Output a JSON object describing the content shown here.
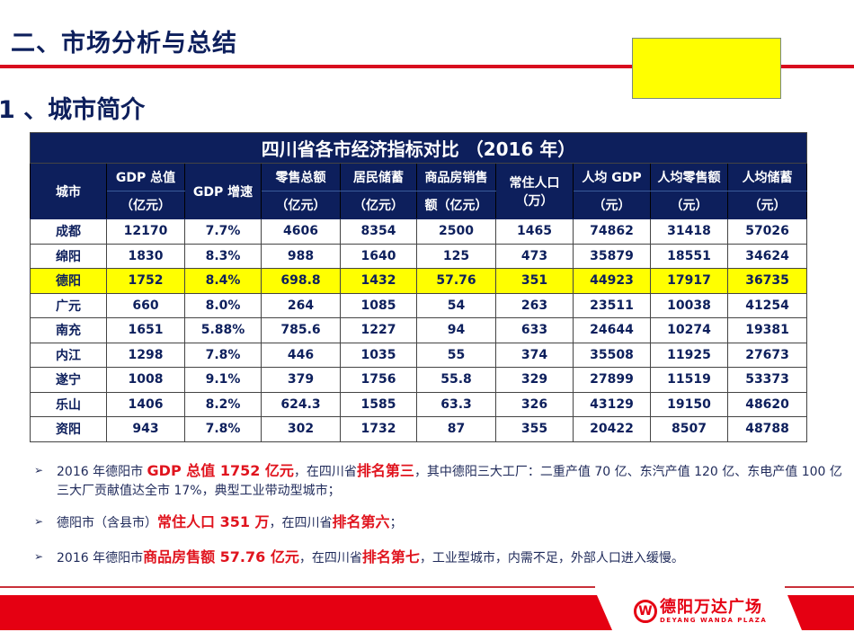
{
  "header": {
    "title": "二、市场分析与总结",
    "subtitle": "1 、城市简介"
  },
  "colors": {
    "navy": "#0d1f5c",
    "red": "#e50012",
    "highlight": "#ffff00"
  },
  "table": {
    "title": "四川省各市经济指标对比 （2016 年）",
    "headers": {
      "city": "城市",
      "gdp_top": "GDP 总值",
      "gdp_bottom": "（亿元）",
      "growth": "GDP 增速",
      "retail_top": "零售总额",
      "retail_bottom": "（亿元）",
      "savings_top": "居民储蓄",
      "savings_bottom": "（亿元）",
      "housing_top": "商品房销售",
      "housing_bottom": "额（亿元）",
      "pop": "常住人口",
      "pop_unit": "（万）",
      "pcgdp_top": "人均 GDP",
      "pcgdp_bottom": "（元）",
      "pcretail_top": "人均零售额",
      "pcretail_bottom": "（元）",
      "pcsav_top": "人均储蓄",
      "pcsav_bottom": "（元）"
    },
    "rows": [
      [
        "成都",
        "12170",
        "7.7%",
        "4606",
        "8354",
        "2500",
        "1465",
        "74862",
        "31418",
        "57026"
      ],
      [
        "绵阳",
        "1830",
        "8.3%",
        "988",
        "1640",
        "125",
        "473",
        "35879",
        "18551",
        "34624"
      ],
      [
        "德阳",
        "1752",
        "8.4%",
        "698.8",
        "1432",
        "57.76",
        "351",
        "44923",
        "17917",
        "36735"
      ],
      [
        "广元",
        "660",
        "8.0%",
        "264",
        "1085",
        "54",
        "263",
        "23511",
        "10038",
        "41254"
      ],
      [
        "南充",
        "1651",
        "5.88%",
        "785.6",
        "1227",
        "94",
        "633",
        "24644",
        "10274",
        "19381"
      ],
      [
        "内江",
        "1298",
        "7.8%",
        "446",
        "1035",
        "55",
        "374",
        "35508",
        "11925",
        "27673"
      ],
      [
        "遂宁",
        "1008",
        "9.1%",
        "379",
        "1756",
        "55.8",
        "329",
        "27899",
        "11519",
        "53373"
      ],
      [
        "乐山",
        "1406",
        "8.2%",
        "624.3",
        "1585",
        "63.3",
        "326",
        "43129",
        "19150",
        "48620"
      ],
      [
        "资阳",
        "943",
        "7.8%",
        "302",
        "1732",
        "87",
        "355",
        "20422",
        "8507",
        "48788"
      ]
    ],
    "highlighted_row": "德阳"
  },
  "bullets": [
    {
      "a": "2016 年德阳市 ",
      "b": "GDP 总值 1752 亿元",
      "c": "，在四川省",
      "d": "排名第三",
      "e": "，其中德阳三大工厂：二重产值 70 亿、东汽产值 120 亿、东电产值 100 亿三大厂贡献值达全市 17%，典型工业带动型城市；"
    },
    {
      "a": "德阳市（含县市）",
      "b": "常住人口  351 万",
      "c": "，在四川省",
      "d": "排名第六",
      "e": "；"
    },
    {
      "a": "2016 年德阳市",
      "b": "商品房售额  57.76 亿元",
      "c": "，在四川省",
      "d": "排名第七",
      "e": "，工业型城市，内需不足，外部人口进入缓慢。"
    }
  ],
  "footer": {
    "logo_cn": "德阳万达广场",
    "logo_en": "DEYANG WANDA PLAZA"
  }
}
